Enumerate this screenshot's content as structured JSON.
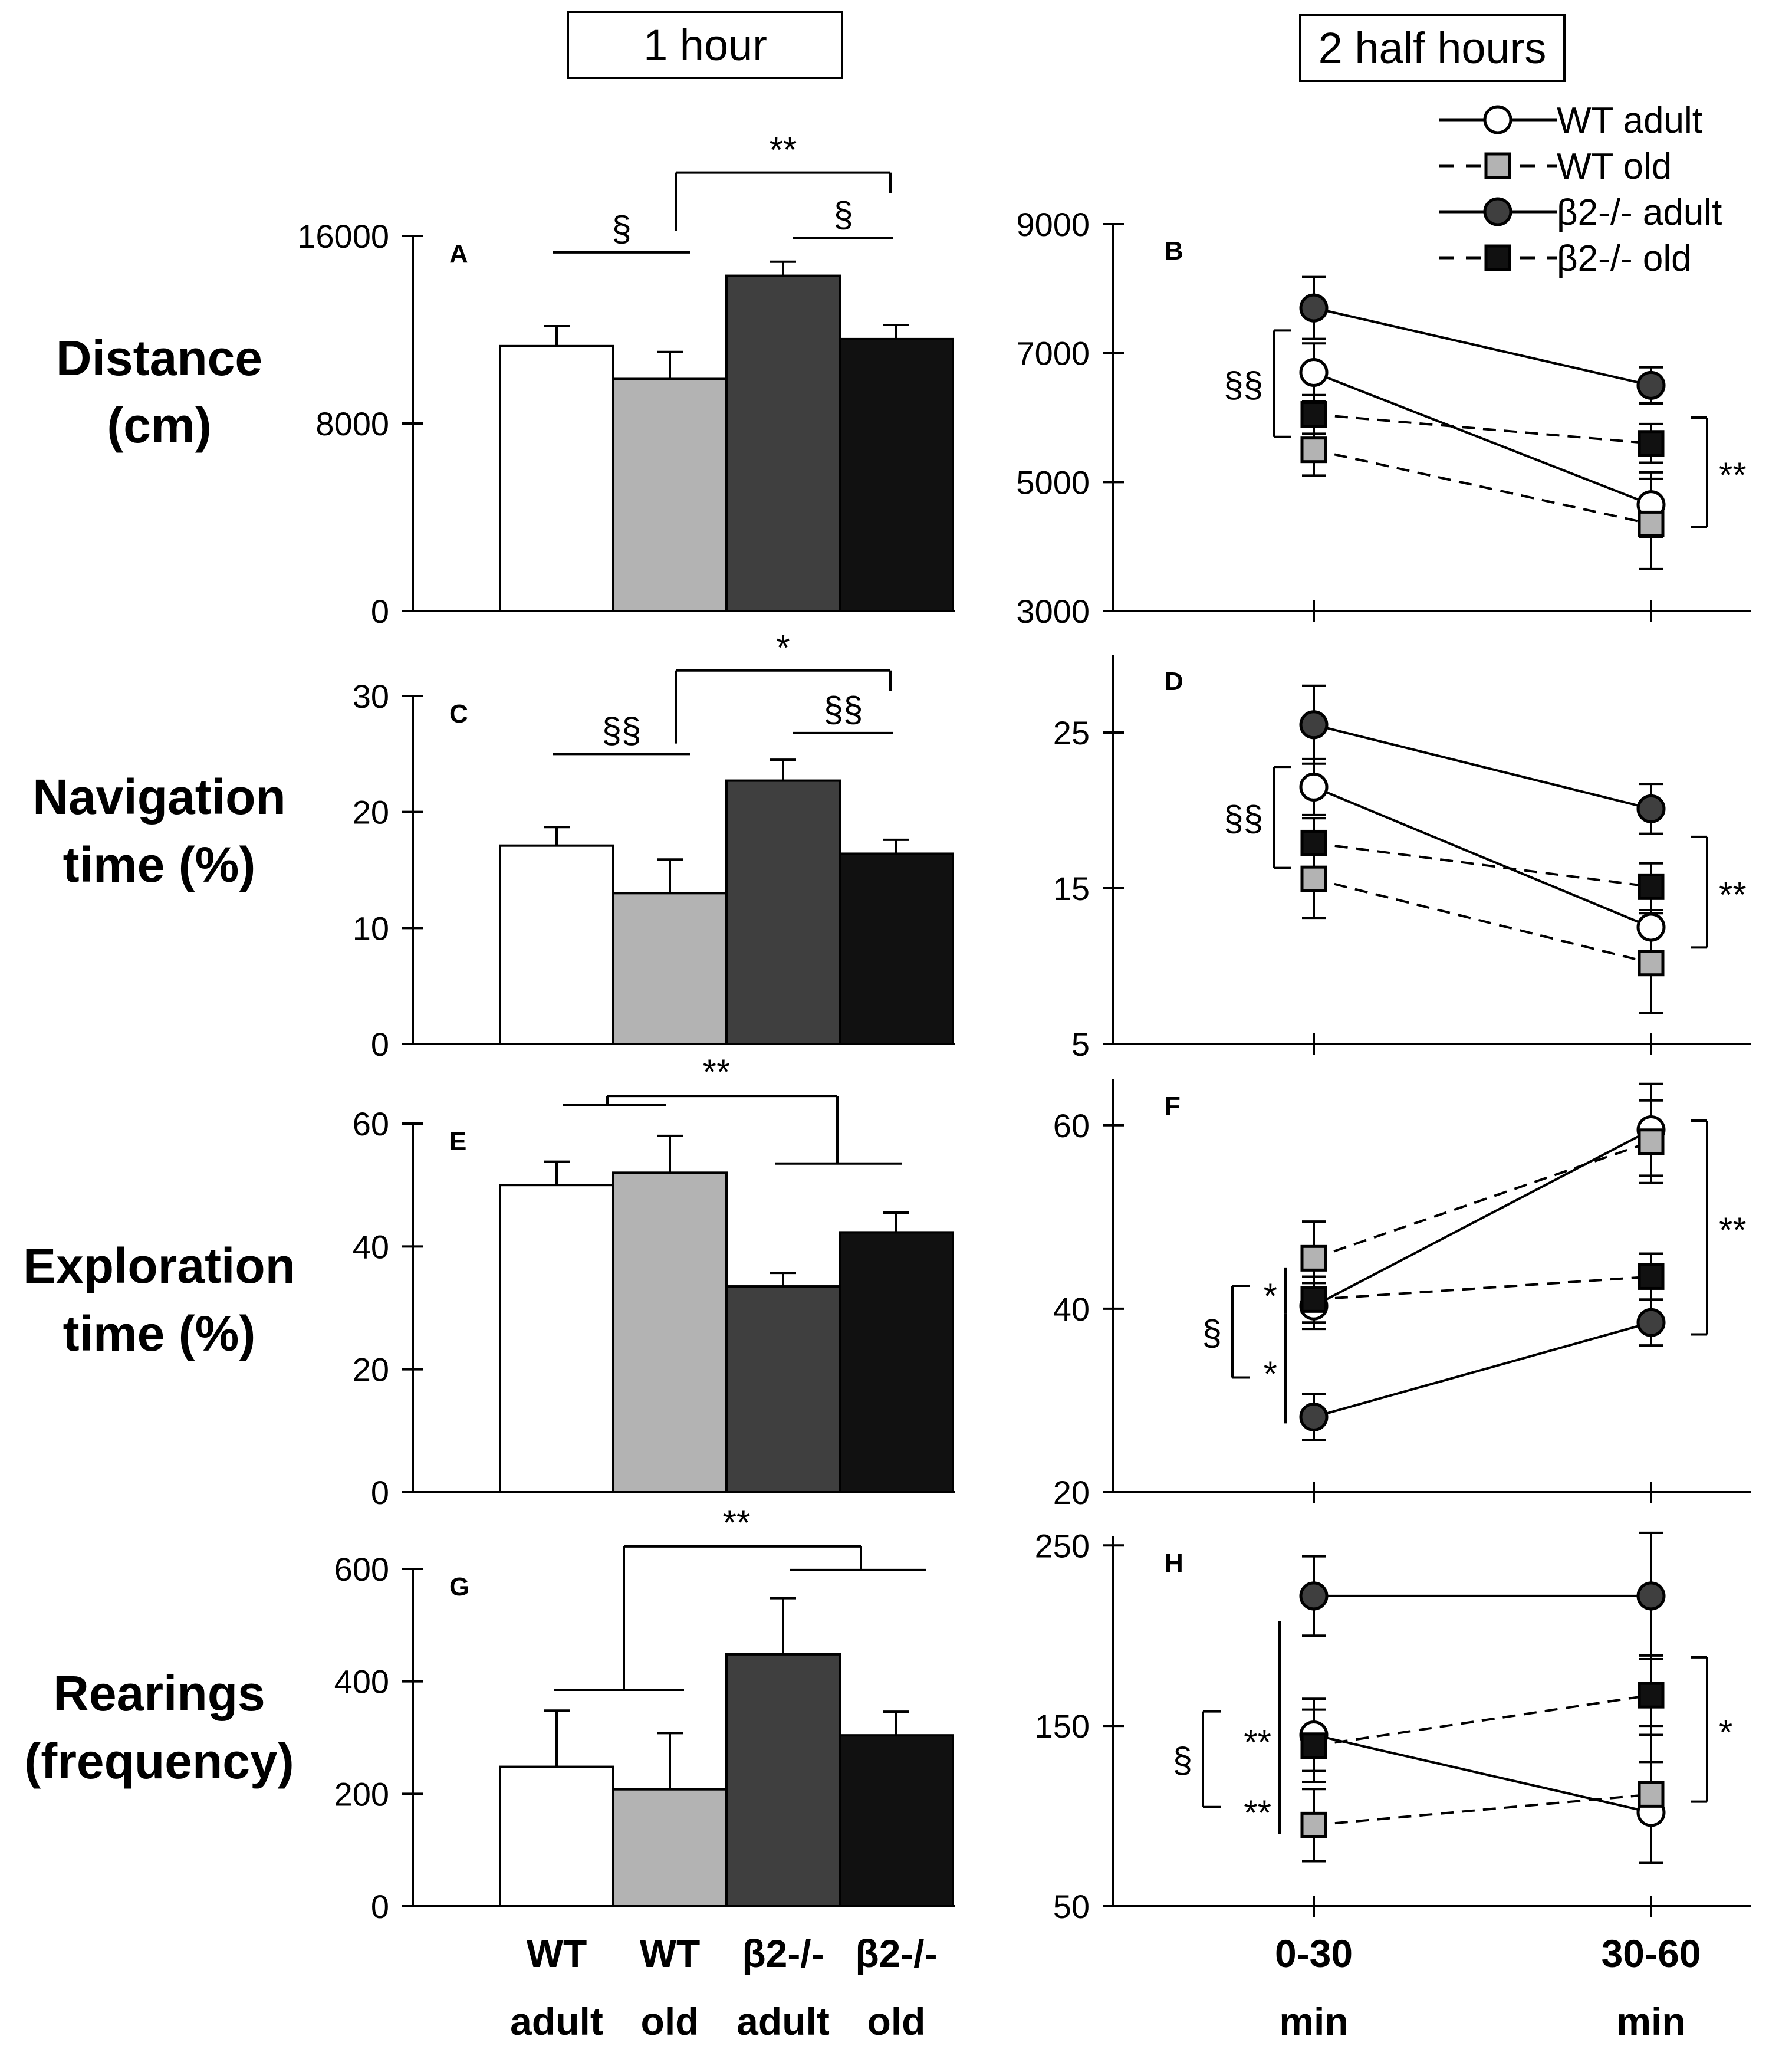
{
  "column_titles": {
    "left": "1 hour",
    "right": "2 half hours"
  },
  "groups": [
    {
      "key": "wt_adult",
      "label": "WT adult",
      "line1": "WT",
      "line2": "adult",
      "fill": "#ffffff",
      "marker": "circle",
      "dashed": false
    },
    {
      "key": "wt_old",
      "label": "WT old",
      "line1": "WT",
      "line2": "old",
      "fill": "#b3b3b3",
      "marker": "square",
      "dashed": true
    },
    {
      "key": "b2_adult",
      "label": "β2-/- adult",
      "line1": "β2-/-",
      "line2": "adult",
      "fill": "#3f3f3f",
      "marker": "circle",
      "dashed": false
    },
    {
      "key": "b2_old",
      "label": "β2-/- old",
      "line1": "β2-/-",
      "line2": "old",
      "fill": "#111111",
      "marker": "square",
      "dashed": true
    }
  ],
  "time_labels": [
    {
      "line1": "0-30",
      "line2": "min"
    },
    {
      "line1": "30-60",
      "line2": "min"
    }
  ],
  "rows": [
    {
      "label1": "Distance",
      "label2": "(cm)"
    },
    {
      "label1": "Navigation",
      "label2": "time (%)"
    },
    {
      "label1": "Exploration",
      "label2": "time (%)"
    },
    {
      "label1": "Rearings",
      "label2": "(frequency)"
    }
  ],
  "chart_data": [
    {
      "panel": "A",
      "type": "bar",
      "row": 0,
      "title": "1 hour",
      "ylabel": "Distance (cm)",
      "ylim": [
        0,
        16000
      ],
      "yticks": [
        0,
        8000,
        16000
      ],
      "categories": [
        "WT adult",
        "WT old",
        "β2-/- adult",
        "β2-/- old"
      ],
      "values": [
        11300,
        9900,
        14300,
        11600
      ],
      "errors": [
        850,
        1150,
        600,
        600
      ],
      "annotations": [
        {
          "text": "§",
          "between": [
            0,
            1
          ],
          "y": 15300
        },
        {
          "text": "§",
          "between": [
            2,
            3
          ],
          "y": 15900
        },
        {
          "text": "**",
          "between": [
            1,
            3
          ],
          "y": 18700
        }
      ]
    },
    {
      "panel": "B",
      "type": "line",
      "row": 0,
      "title": "2 half hours",
      "ylim": [
        3000,
        9000
      ],
      "yticks": [
        3000,
        5000,
        7000,
        9000
      ],
      "x": [
        "0-30 min",
        "30-60 min"
      ],
      "series": [
        {
          "name": "WT adult",
          "values": [
            6700,
            4650
          ],
          "errors": [
            450,
            500
          ]
        },
        {
          "name": "WT old",
          "values": [
            5500,
            4350
          ],
          "errors": [
            400,
            700
          ]
        },
        {
          "name": "β2-/- adult",
          "values": [
            7700,
            6500
          ],
          "errors": [
            480,
            280
          ]
        },
        {
          "name": "β2-/- old",
          "values": [
            6050,
            5600
          ],
          "errors": [
            300,
            300
          ]
        }
      ],
      "annotations": [
        {
          "text": "§§",
          "side": "left",
          "range": [
            5700,
            7350
          ]
        },
        {
          "text": "**",
          "side": "right",
          "range": [
            4300,
            6000
          ]
        }
      ]
    },
    {
      "panel": "C",
      "type": "bar",
      "row": 1,
      "ylabel": "Navigation time (%)",
      "ylim": [
        0,
        30
      ],
      "yticks": [
        0,
        10,
        20,
        30
      ],
      "categories": [
        "WT adult",
        "WT old",
        "β2-/- adult",
        "β2-/- old"
      ],
      "values": [
        17.1,
        13.0,
        22.7,
        16.4
      ],
      "errors": [
        1.6,
        2.9,
        1.8,
        1.2
      ],
      "annotations": [
        {
          "text": "§§",
          "between": [
            0,
            1
          ],
          "y": 25
        },
        {
          "text": "§§",
          "between": [
            2,
            3
          ],
          "y": 26.8
        },
        {
          "text": "*",
          "between": [
            1,
            3
          ],
          "y": 32.2
        }
      ]
    },
    {
      "panel": "D",
      "type": "line",
      "row": 1,
      "ylim": [
        5,
        30
      ],
      "yticks": [
        5,
        15,
        25
      ],
      "x": [
        "0-30 min",
        "30-60 min"
      ],
      "series": [
        {
          "name": "WT adult",
          "values": [
            21.5,
            12.5
          ],
          "errors": [
            1.8,
            2.0
          ]
        },
        {
          "name": "WT old",
          "values": [
            15.6,
            10.2
          ],
          "errors": [
            2.5,
            3.2
          ]
        },
        {
          "name": "β2-/- adult",
          "values": [
            25.5,
            20.1
          ],
          "errors": [
            2.5,
            1.6
          ]
        },
        {
          "name": "β2-/- old",
          "values": [
            17.9,
            15.1
          ],
          "errors": [
            1.6,
            1.5
          ]
        }
      ],
      "annotations": [
        {
          "text": "§§",
          "side": "left",
          "range": [
            16.3,
            22.8
          ]
        },
        {
          "text": "**",
          "side": "right",
          "range": [
            11.2,
            18.3
          ]
        }
      ]
    },
    {
      "panel": "E",
      "type": "bar",
      "row": 2,
      "ylabel": "Exploration time (%)",
      "ylim": [
        0,
        60
      ],
      "yticks": [
        0,
        20,
        40,
        60
      ],
      "categories": [
        "WT adult",
        "WT old",
        "β2-/- adult",
        "β2-/- old"
      ],
      "values": [
        50,
        52,
        33.5,
        42.3
      ],
      "errors": [
        3.8,
        6.0,
        2.2,
        3.2
      ],
      "annotations": [
        {
          "text": "**",
          "between": [
            1,
            3
          ],
          "y": 64.5
        }
      ]
    },
    {
      "panel": "F",
      "type": "line",
      "row": 2,
      "ylim": [
        20,
        65
      ],
      "yticks": [
        20,
        40,
        60
      ],
      "x": [
        "0-30 min",
        "30-60 min"
      ],
      "series": [
        {
          "name": "WT adult",
          "values": [
            40.3,
            59.5
          ],
          "errors": [
            2.5,
            5.0
          ]
        },
        {
          "name": "WT old",
          "values": [
            45.5,
            58.2
          ],
          "errors": [
            4.0,
            4.5
          ]
        },
        {
          "name": "β2-/- adult",
          "values": [
            28.2,
            38.5
          ],
          "errors": [
            2.5,
            2.5
          ]
        },
        {
          "name": "β2-/- old",
          "values": [
            41.0,
            43.5
          ],
          "errors": [
            2.5,
            2.5
          ]
        }
      ],
      "annotations": [
        {
          "text": "*",
          "side": "left",
          "range": [
            39.5,
            44.5
          ]
        },
        {
          "text": "*",
          "side": "left",
          "range": [
            27.5,
            39.5
          ]
        },
        {
          "text": "§",
          "side": "left",
          "range": [
            32.5,
            42.5
          ]
        },
        {
          "text": "**",
          "side": "right",
          "range": [
            37.2,
            60.5
          ]
        }
      ]
    },
    {
      "panel": "G",
      "type": "bar",
      "row": 3,
      "ylabel": "Rearings (frequency)",
      "ylim": [
        0,
        600
      ],
      "yticks": [
        0,
        200,
        400,
        600
      ],
      "categories": [
        "WT adult",
        "WT old",
        "β2-/- adult",
        "β2-/- old"
      ],
      "values": [
        248,
        208,
        448,
        304
      ],
      "errors": [
        100,
        100,
        100,
        42
      ],
      "annotations": [
        {
          "text": "**",
          "between": [
            1,
            3
          ],
          "y": 640
        }
      ]
    },
    {
      "panel": "H",
      "type": "line",
      "row": 3,
      "ylim": [
        50,
        255
      ],
      "yticks": [
        50,
        150,
        250
      ],
      "x": [
        "0-30 min",
        "30-60 min"
      ],
      "series": [
        {
          "name": "WT adult",
          "values": [
            145,
            102
          ],
          "errors": [
            20,
            28
          ]
        },
        {
          "name": "WT old",
          "values": [
            95,
            112
          ],
          "errors": [
            20,
            38
          ]
        },
        {
          "name": "β2-/- adult",
          "values": [
            222,
            222
          ],
          "errors": [
            22,
            35
          ]
        },
        {
          "name": "β2-/- old",
          "values": [
            139,
            167
          ],
          "errors": [
            20,
            22
          ]
        }
      ],
      "annotations": [
        {
          "text": "**",
          "side": "left",
          "range": [
            90,
            208
          ]
        },
        {
          "text": "**",
          "side": "left",
          "range": [
            90,
            120
          ]
        },
        {
          "text": "**",
          "side": "left",
          "range": [
            120,
            168
          ]
        },
        {
          "text": "§",
          "side": "left",
          "range": [
            105,
            158
          ]
        },
        {
          "text": "*",
          "side": "right",
          "range": [
            108,
            188
          ]
        }
      ]
    }
  ]
}
